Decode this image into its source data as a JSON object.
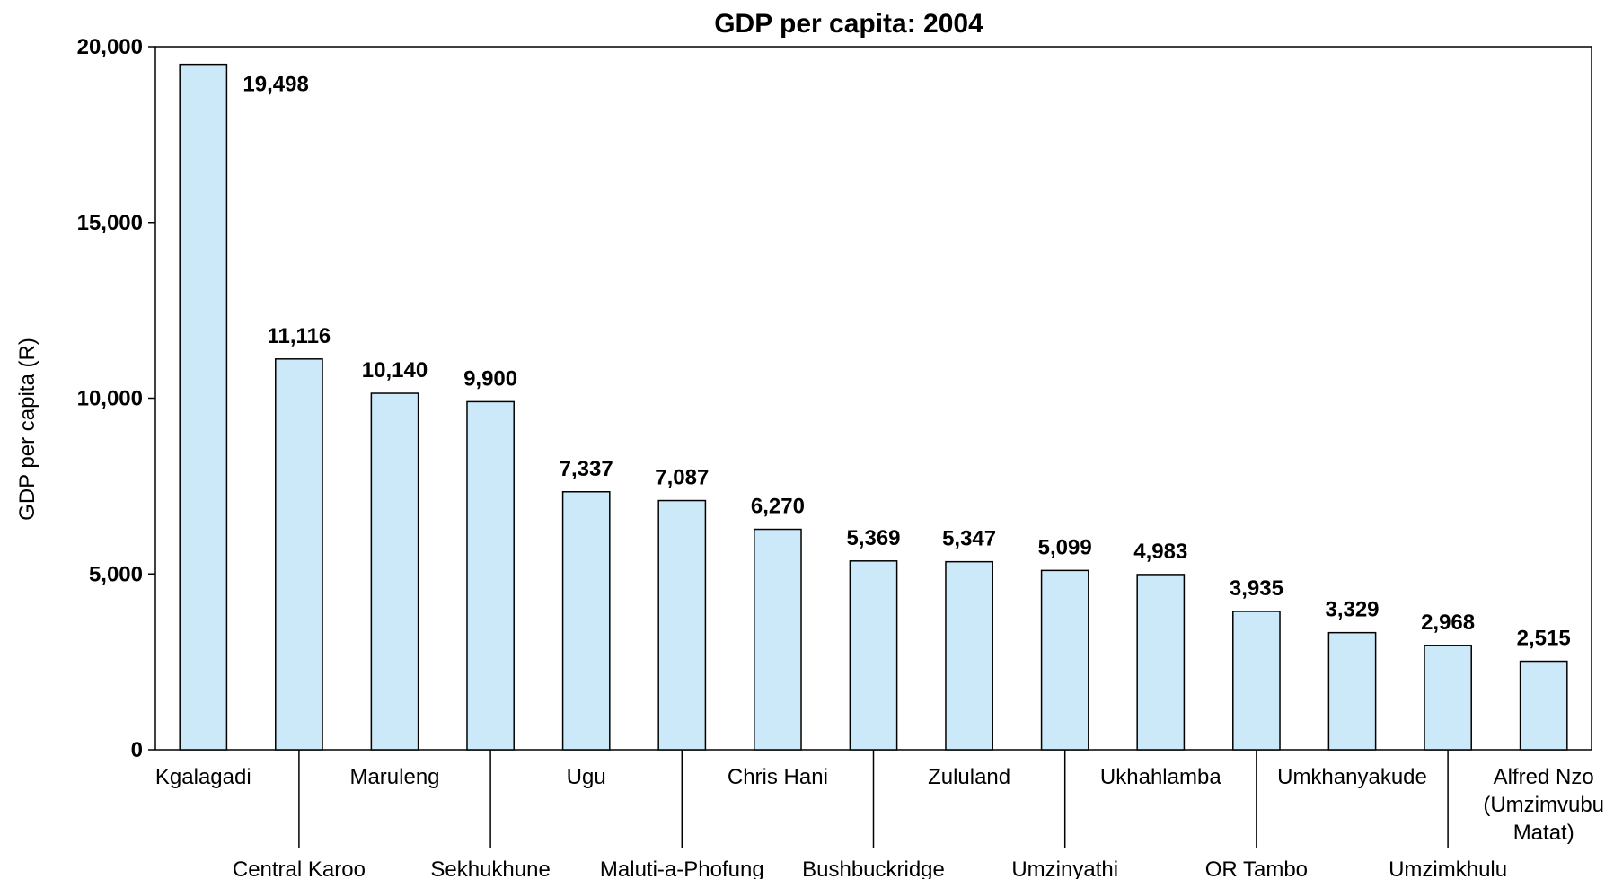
{
  "chart_data": {
    "type": "bar",
    "title": "GDP per capita: 2004",
    "xlabel": "",
    "ylabel": "GDP per capita (R)",
    "ylim": [
      0,
      20000
    ],
    "yticks": [
      0,
      5000,
      10000,
      15000,
      20000
    ],
    "ytick_labels": [
      "0",
      "5,000",
      "10,000",
      "15,000",
      "20,000"
    ],
    "grid": false,
    "bar_color": "#cce9f9",
    "bar_edge_color": "#000000",
    "categories": [
      [
        "Kgalagadi"
      ],
      [
        "Central Karoo"
      ],
      [
        "Maruleng"
      ],
      [
        "Sekhukhune"
      ],
      [
        "Ugu"
      ],
      [
        "Maluti-a-Phofung"
      ],
      [
        "Chris  Hani"
      ],
      [
        "Bushbuckridge"
      ],
      [
        "Zululand"
      ],
      [
        "Umzinyathi"
      ],
      [
        "Ukhahlamba"
      ],
      [
        "OR Tambo"
      ],
      [
        "Umkhanyakude"
      ],
      [
        "Umzimkhulu"
      ],
      [
        "Alfred Nzo",
        "(Umzimvubu",
        "Matat)"
      ]
    ],
    "values": [
      19498,
      11116,
      10140,
      9900,
      7337,
      7087,
      6270,
      5369,
      5347,
      5099,
      4983,
      3935,
      3329,
      2968,
      2515
    ],
    "value_labels": [
      "19,498",
      "11,116",
      "10,140",
      "9,900",
      "7,337",
      "7,087",
      "6,270",
      "5,369",
      "5,347",
      "5,099",
      "4,983",
      "3,935",
      "3,329",
      "2,968",
      "2,515"
    ]
  }
}
